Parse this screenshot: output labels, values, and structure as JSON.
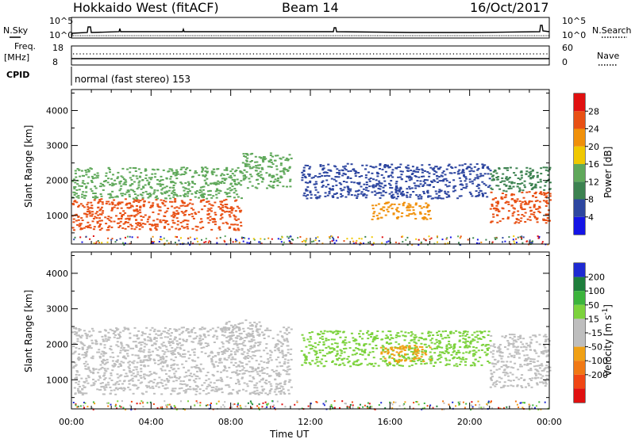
{
  "header": {
    "station": "Hokkaido West (fitACF)",
    "beam": "Beam 14",
    "date": "16/Oct/2017"
  },
  "strip": {
    "nsky_label": "N.Sky",
    "nsearch_label": "N.Search",
    "noise_ticks": [
      "10^5",
      "10^0"
    ],
    "freq_label": "Freq.",
    "freq_unit": "[MHz]",
    "freq_ticks": [
      "18",
      "8"
    ],
    "nave_label": "Nave",
    "nave_ticks": [
      "60",
      "0"
    ],
    "cpid_label": "CPID",
    "cpid_text": "normal (fast stereo) 153"
  },
  "colors": {
    "power_scale": [
      "#1414e6",
      "#2d46a0",
      "#3c8250",
      "#5fa85a",
      "#f0c800",
      "#f0900a",
      "#e85014",
      "#e01010"
    ],
    "velocity_scale": [
      "#1e2ad2",
      "#1e7e3c",
      "#3cb43c",
      "#7cd23c",
      "#bebebe",
      "#bebebe",
      "#f0a014",
      "#f07814",
      "#f04614",
      "#e01010"
    ]
  },
  "chart_data": [
    {
      "type": "heatmap",
      "title": "Power",
      "ylabel": "Slant Range [km]",
      "xlabel": "",
      "ylim": [
        180,
        4600
      ],
      "yticks": [
        "1000",
        "2000",
        "3000",
        "4000"
      ],
      "xticks": [
        "00:00",
        "04:00",
        "08:00",
        "12:00",
        "16:00",
        "20:00",
        "00:00"
      ],
      "colorbar": {
        "label": "Power [dB]",
        "ticks": [
          "28",
          "24",
          "20",
          "16",
          "12",
          "8",
          "4"
        ],
        "range": [
          0,
          32
        ]
      },
      "regions": [
        {
          "t": [
            0.0,
            8.5
          ],
          "range_km": [
            600,
            1500
          ],
          "level_db": 24
        },
        {
          "t": [
            0.0,
            8.5
          ],
          "range_km": [
            1500,
            2400
          ],
          "level_db": 12
        },
        {
          "t": [
            8.5,
            11.0
          ],
          "range_km": [
            1800,
            2800
          ],
          "level_db": 14
        },
        {
          "t": [
            11.5,
            21.0
          ],
          "range_km": [
            1500,
            2500
          ],
          "level_db": 6
        },
        {
          "t": [
            15.0,
            18.0
          ],
          "range_km": [
            900,
            1400
          ],
          "level_db": 22
        },
        {
          "t": [
            21.0,
            24.0
          ],
          "range_km": [
            800,
            1700
          ],
          "level_db": 26
        },
        {
          "t": [
            21.0,
            24.0
          ],
          "range_km": [
            1700,
            2400
          ],
          "level_db": 8
        }
      ]
    },
    {
      "type": "heatmap",
      "title": "Velocity",
      "ylabel": "Slant Range [km]",
      "xlabel": "Time UT",
      "ylim": [
        180,
        4600
      ],
      "yticks": [
        "1000",
        "2000",
        "3000",
        "4000"
      ],
      "xticks": [
        "00:00",
        "04:00",
        "08:00",
        "12:00",
        "16:00",
        "20:00",
        "00:00"
      ],
      "colorbar": {
        "label": "Velocity [m s",
        "label_sup": "-1",
        "label_end": "]",
        "ticks": [
          "200",
          "100",
          "50",
          "15",
          "-15",
          "-50",
          "-100",
          "-200"
        ],
        "range": [
          -250,
          250
        ]
      },
      "regions": [
        {
          "t": [
            0.0,
            11.0
          ],
          "range_km": [
            600,
            2500
          ],
          "velocity": 0
        },
        {
          "t": [
            7.5,
            9.5
          ],
          "range_km": [
            2200,
            2700
          ],
          "velocity": -50
        },
        {
          "t": [
            11.5,
            21.0
          ],
          "range_km": [
            1400,
            2400
          ],
          "velocity": 30
        },
        {
          "t": [
            15.5,
            18.0
          ],
          "range_km": [
            1500,
            2000
          ],
          "velocity": -60
        },
        {
          "t": [
            21.0,
            24.0
          ],
          "range_km": [
            800,
            2300
          ],
          "velocity": 0
        }
      ]
    }
  ]
}
